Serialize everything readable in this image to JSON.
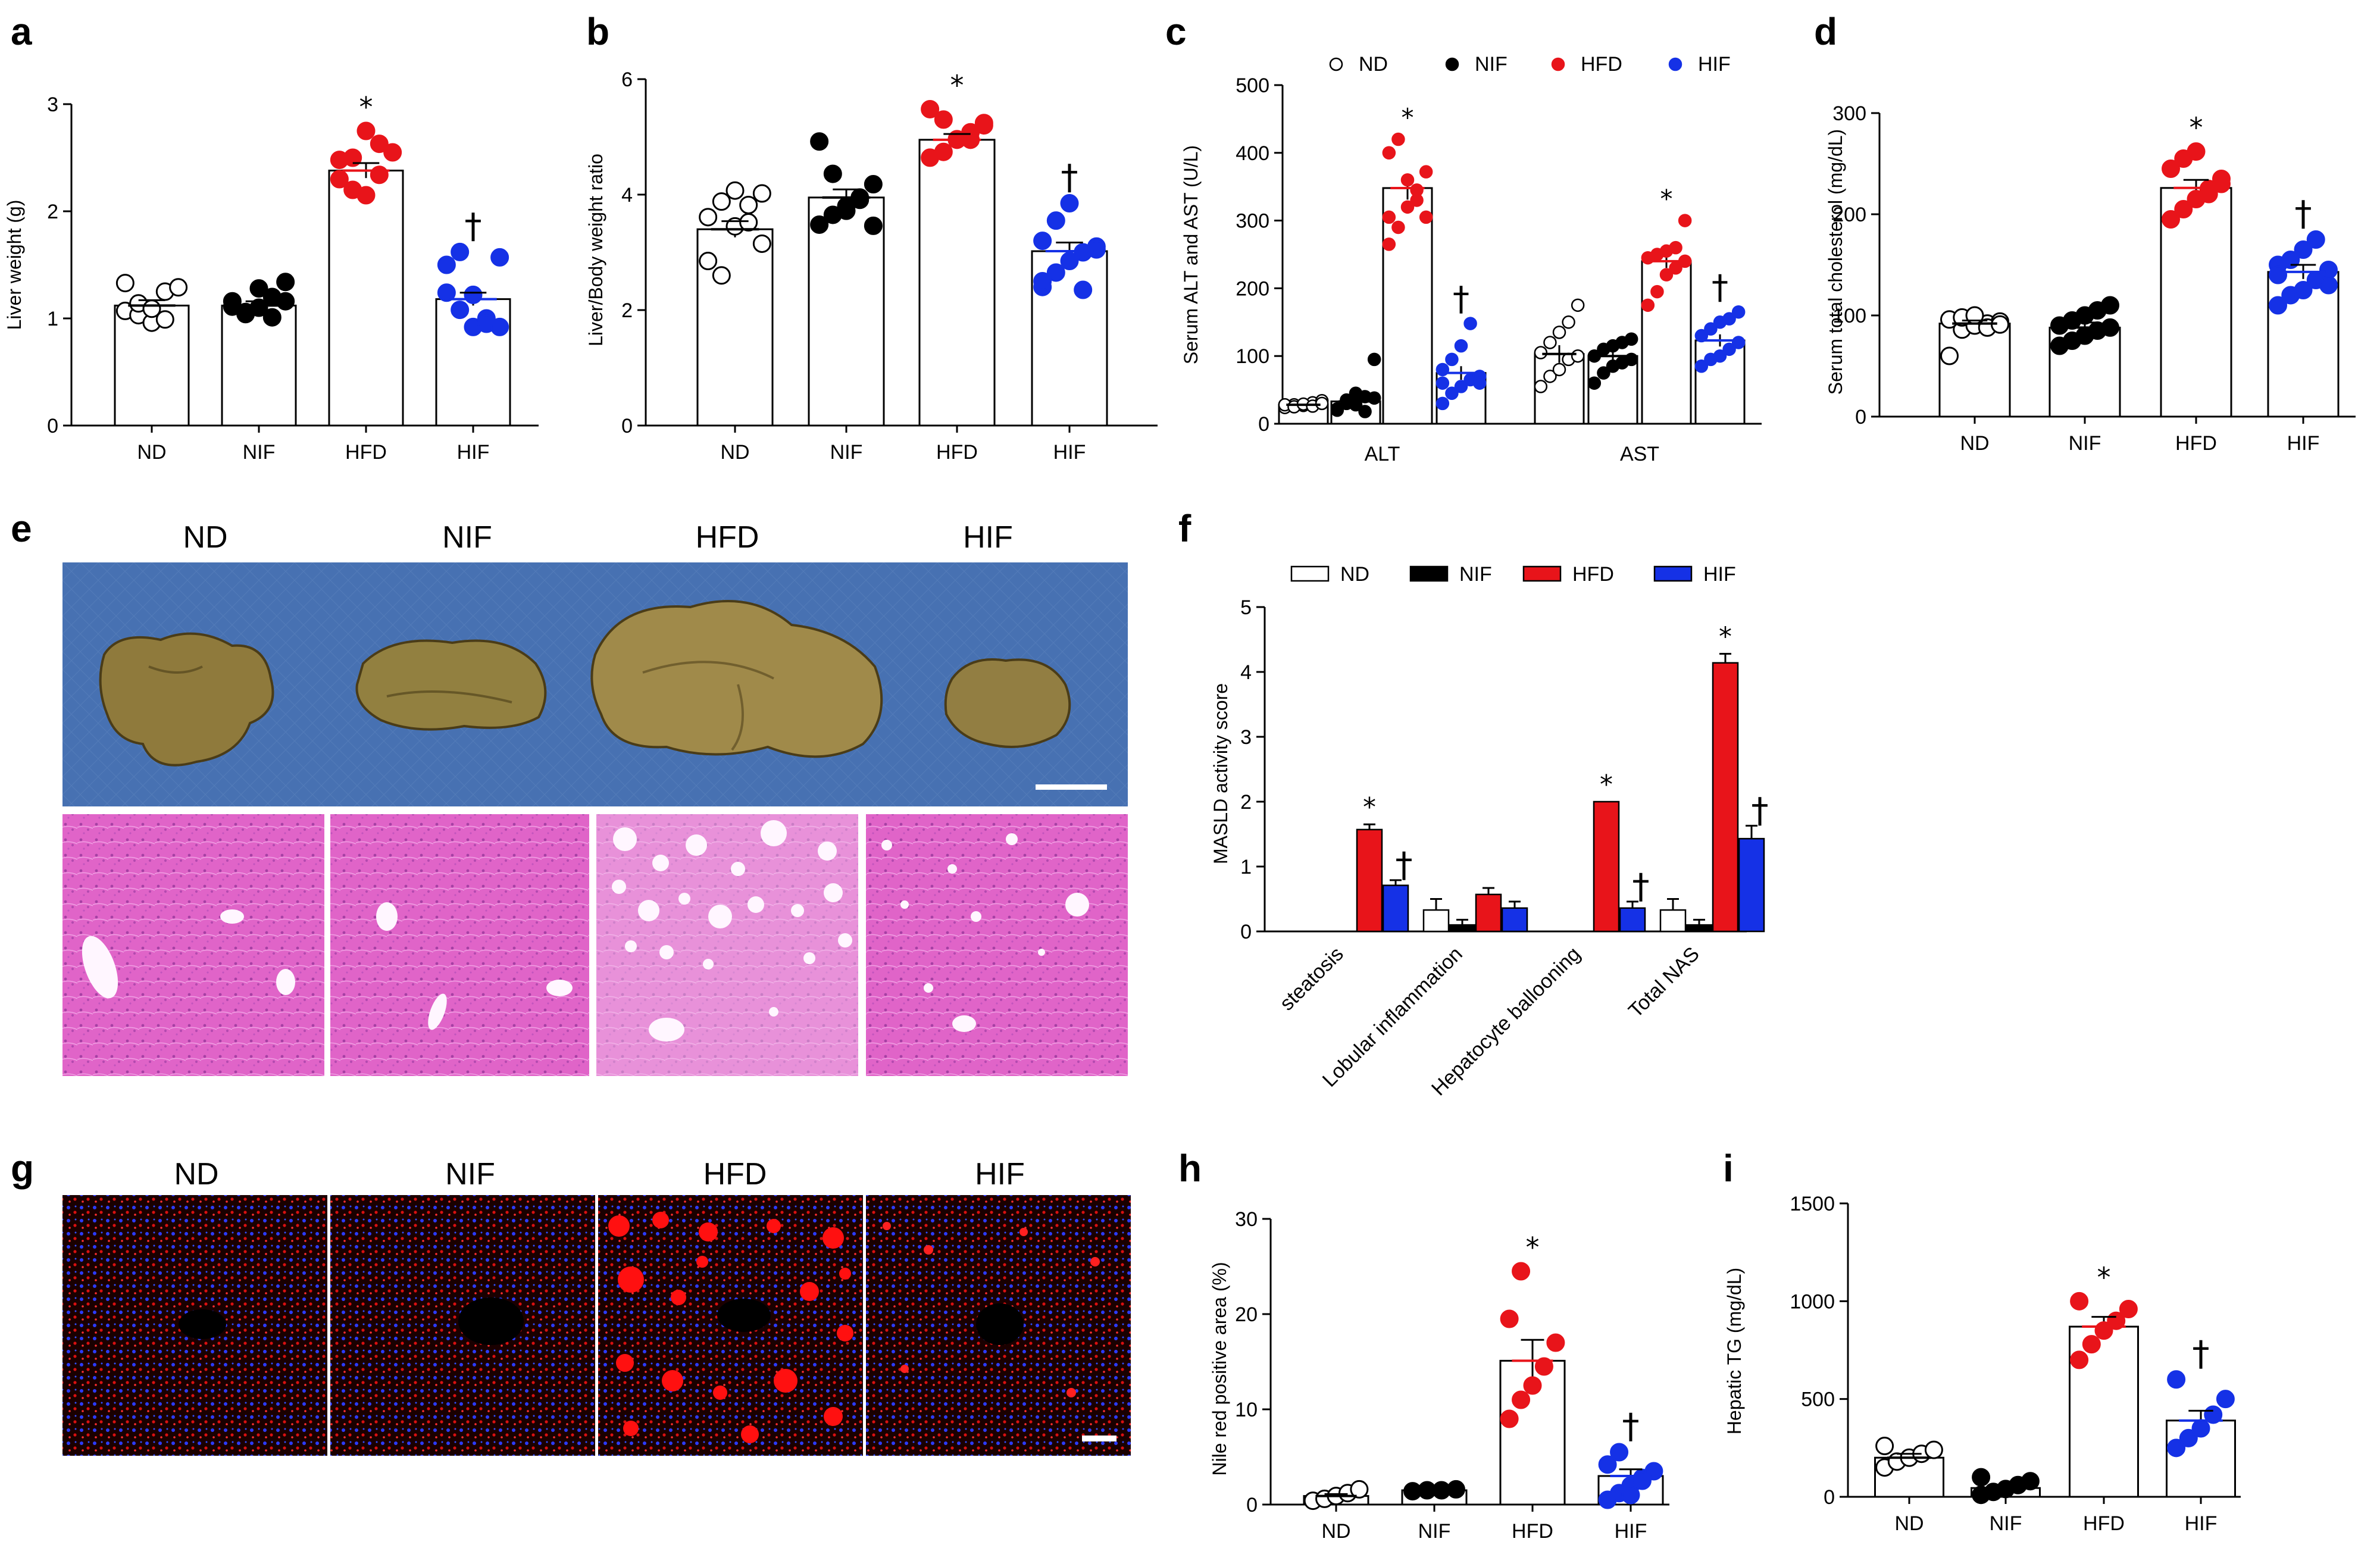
{
  "panel_labels": [
    "a",
    "b",
    "c",
    "d",
    "e",
    "f",
    "g",
    "h",
    "i"
  ],
  "colors": {
    "ND": "#ffffff",
    "NIF": "#000000",
    "HFD": "#e8141a",
    "HIF": "#1531e6"
  },
  "images": {
    "e_groups": [
      "ND",
      "NIF",
      "HFD",
      "HIF"
    ],
    "g_groups": [
      "ND",
      "NIF",
      "HFD",
      "HIF"
    ]
  },
  "chart_data": [
    {
      "panel": "a",
      "type": "scatter",
      "categories": [
        "ND",
        "NIF",
        "HFD",
        "HIF"
      ],
      "ylabel": "Liver weight (g)",
      "ylim": [
        0,
        3
      ],
      "yticks": [
        0,
        1,
        2,
        3
      ],
      "means": [
        1.12,
        1.12,
        2.38,
        1.18
      ],
      "sem": [
        0.05,
        0.04,
        0.07,
        0.06
      ],
      "marks": [
        "",
        "",
        "*",
        "†"
      ],
      "points": [
        [
          1.07,
          1.03,
          0.96,
          1.25,
          1.29,
          1.33,
          1.14,
          1.09,
          0.99
        ],
        [
          1.16,
          1.06,
          1.28,
          1.2,
          1.34,
          1.11,
          1.04,
          1.1,
          1.01,
          1.16
        ],
        [
          2.3,
          2.5,
          2.75,
          2.63,
          2.55,
          2.48,
          2.2,
          2.15,
          2.34
        ],
        [
          1.24,
          1.08,
          0.92,
          1.0,
          1.57,
          1.5,
          1.62,
          1.22,
          0.95,
          0.92
        ]
      ]
    },
    {
      "panel": "b",
      "type": "scatter",
      "categories": [
        "ND",
        "NIF",
        "HFD",
        "HIF"
      ],
      "ylabel": "Liver/Body weight ratio",
      "ylim": [
        0,
        6
      ],
      "yticks": [
        0,
        2,
        4,
        6
      ],
      "means": [
        3.4,
        3.95,
        4.95,
        3.02
      ],
      "sem": [
        0.14,
        0.14,
        0.1,
        0.15
      ],
      "marks": [
        "",
        "",
        "*",
        "†"
      ],
      "points": [
        [
          3.61,
          3.88,
          4.07,
          3.82,
          3.15,
          2.85,
          2.6,
          3.45,
          3.52,
          4.02
        ],
        [
          3.48,
          3.65,
          3.72,
          3.91,
          4.18,
          4.92,
          4.36,
          3.8,
          3.95,
          3.46
        ],
        [
          4.64,
          4.74,
          4.95,
          5.08,
          5.24,
          5.48,
          5.3,
          4.96,
          4.95,
          5.2
        ],
        [
          2.4,
          2.65,
          2.85,
          3.0,
          3.1,
          3.2,
          3.55,
          3.85,
          2.35,
          3.05,
          2.5
        ]
      ]
    },
    {
      "panel": "c",
      "type": "scatter",
      "groups": [
        "ALT",
        "AST"
      ],
      "categories": [
        "ND",
        "NIF",
        "HFD",
        "HIF"
      ],
      "legend": [
        "ND",
        "NIF",
        "HFD",
        "HIF"
      ],
      "ylabel": "Serum ALT and AST (U/L)",
      "ylim": [
        0,
        500
      ],
      "yticks": [
        0,
        100,
        200,
        300,
        400,
        500
      ],
      "means": {
        "ALT": [
          28,
          33,
          348,
          75
        ],
        "AST": [
          103,
          100,
          240,
          123
        ]
      },
      "sem": {
        "ALT": [
          2,
          8,
          17,
          10
        ],
        "AST": [
          13,
          8,
          10,
          9
        ]
      },
      "marks": {
        "ALT": [
          "",
          "",
          "*",
          "†"
        ],
        "AST": [
          "",
          "",
          "*",
          "†"
        ]
      },
      "points": {
        "ALT": [
          [
            24,
            28,
            27,
            31,
            34,
            28,
            25,
            29,
            26,
            30
          ],
          [
            20,
            35,
            28,
            40,
            95,
            22,
            30,
            45,
            18,
            38
          ],
          [
            265,
            290,
            320,
            345,
            372,
            400,
            420,
            360,
            330,
            305,
            305
          ],
          [
            30,
            45,
            55,
            65,
            70,
            80,
            95,
            115,
            148,
            60,
            60
          ]
        ],
        "AST": [
          [
            55,
            70,
            80,
            95,
            100,
            105,
            120,
            135,
            150,
            175
          ],
          [
            60,
            75,
            85,
            90,
            95,
            100,
            110,
            115,
            120,
            125
          ],
          [
            175,
            195,
            220,
            230,
            240,
            245,
            250,
            255,
            260,
            300
          ],
          [
            85,
            95,
            100,
            110,
            120,
            130,
            140,
            150,
            155,
            165
          ]
        ]
      }
    },
    {
      "panel": "d",
      "type": "scatter",
      "categories": [
        "ND",
        "NIF",
        "HFD",
        "HIF"
      ],
      "ylabel": "Serum total cholesterol (mg/dL)",
      "ylim": [
        0,
        300
      ],
      "yticks": [
        0,
        100,
        200,
        300
      ],
      "means": [
        92,
        88,
        226,
        143
      ],
      "sem": [
        3,
        5,
        8,
        7
      ],
      "marks": [
        "",
        "",
        "*",
        "†"
      ],
      "points": [
        [
          60,
          86,
          90,
          92,
          94,
          96,
          98,
          100,
          88,
          91
        ],
        [
          70,
          75,
          80,
          85,
          88,
          90,
          95,
          100,
          105,
          110
        ],
        [
          195,
          205,
          215,
          225,
          235,
          245,
          255,
          262,
          220,
          230
        ],
        [
          110,
          120,
          125,
          135,
          145,
          150,
          155,
          165,
          175,
          130,
          140
        ]
      ]
    },
    {
      "panel": "f",
      "type": "bar",
      "title": "",
      "legend": [
        "ND",
        "NIF",
        "HFD",
        "HIF"
      ],
      "categories": [
        "steatosis",
        "Lobular inflammation",
        "Hepatocyte ballooning",
        "Total NAS"
      ],
      "ylabel": "MASLD activity score",
      "ylim": [
        0,
        5
      ],
      "yticks": [
        0,
        1,
        2,
        3,
        4,
        5
      ],
      "series": [
        {
          "name": "ND",
          "values": [
            0,
            0.33,
            0,
            0.33
          ],
          "sem": [
            0,
            0.17,
            0,
            0.17
          ]
        },
        {
          "name": "NIF",
          "values": [
            0,
            0.1,
            0,
            0.1
          ],
          "sem": [
            0,
            0.08,
            0,
            0.08
          ]
        },
        {
          "name": "HFD",
          "values": [
            1.57,
            0.57,
            2.0,
            4.14
          ],
          "sem": [
            0.08,
            0.1,
            0,
            0.14
          ]
        },
        {
          "name": "HIF",
          "values": [
            0.71,
            0.36,
            0.36,
            1.43
          ],
          "sem": [
            0.08,
            0.1,
            0.1,
            0.2
          ]
        }
      ],
      "marks": {
        "HFD": [
          "*",
          "",
          "*",
          "*"
        ],
        "HIF": [
          "†",
          "",
          "†",
          "†"
        ]
      }
    },
    {
      "panel": "h",
      "type": "scatter",
      "categories": [
        "ND",
        "NIF",
        "HFD",
        "HIF"
      ],
      "ylabel": "Nile red positive area (%)",
      "ylim": [
        0,
        30
      ],
      "yticks": [
        0,
        10,
        20,
        30
      ],
      "means": [
        0.9,
        1.5,
        15.1,
        3.0
      ],
      "sem": [
        0.2,
        0.1,
        2.2,
        0.7
      ],
      "marks": [
        "",
        "",
        "*",
        "†"
      ],
      "points": [
        [
          0.4,
          0.6,
          0.9,
          1.2,
          1.6
        ],
        [
          1.4,
          1.5,
          1.5,
          1.6
        ],
        [
          9.0,
          11.0,
          12.5,
          14.5,
          17.0,
          19.5,
          24.5
        ],
        [
          0.5,
          1.2,
          2.0,
          2.8,
          3.5,
          4.2,
          5.5,
          1.0,
          2.5
        ]
      ]
    },
    {
      "panel": "i",
      "type": "scatter",
      "categories": [
        "ND",
        "NIF",
        "HFD",
        "HIF"
      ],
      "ylabel": "Hepatic TG (mg/dL)",
      "ylim": [
        0,
        1500
      ],
      "yticks": [
        0,
        500,
        1000,
        1500
      ],
      "means": [
        200,
        45,
        870,
        390
      ],
      "sem": [
        20,
        15,
        50,
        50
      ],
      "marks": [
        "",
        "",
        "*",
        "†"
      ],
      "points": [
        [
          150,
          180,
          200,
          220,
          240,
          260
        ],
        [
          10,
          25,
          40,
          60,
          80,
          100
        ],
        [
          700,
          780,
          850,
          900,
          960,
          1000
        ],
        [
          250,
          300,
          350,
          420,
          500,
          600
        ]
      ]
    }
  ]
}
